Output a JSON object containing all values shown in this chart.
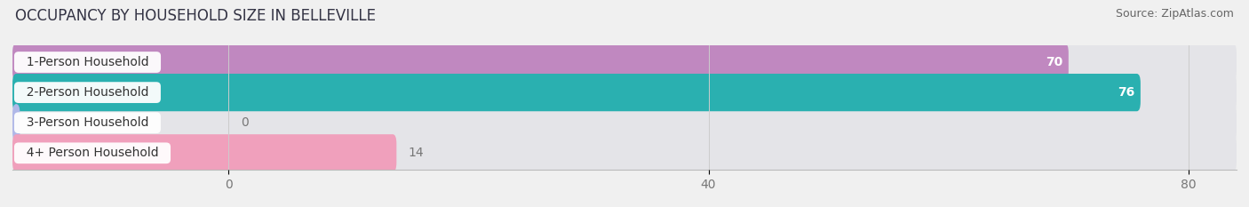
{
  "title": "OCCUPANCY BY HOUSEHOLD SIZE IN BELLEVILLE",
  "source": "Source: ZipAtlas.com",
  "categories": [
    "1-Person Household",
    "2-Person Household",
    "3-Person Household",
    "4+ Person Household"
  ],
  "values": [
    70,
    76,
    0,
    14
  ],
  "bar_colors": [
    "#c088c0",
    "#2ab0b0",
    "#b0b8e8",
    "#f0a0bc"
  ],
  "background_color": "#f0f0f0",
  "bar_bg_color": "#e4e4e8",
  "xlim": [
    -18,
    84
  ],
  "xlim_display": [
    0,
    80
  ],
  "xticks": [
    0,
    40,
    80
  ],
  "value_label_color_inside": "#ffffff",
  "value_label_color_outside": "#777777",
  "title_fontsize": 12,
  "source_fontsize": 9,
  "bar_label_fontsize": 10,
  "tick_fontsize": 10,
  "category_fontsize": 10,
  "bar_height": 0.62,
  "bar_gap": 0.12
}
